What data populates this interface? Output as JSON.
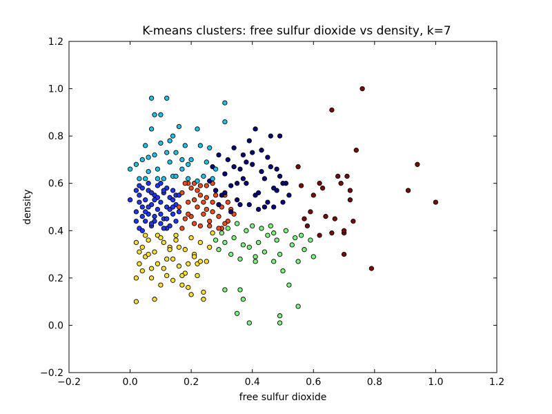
{
  "chart_data": {
    "type": "scatter",
    "title": "K-means clusters: free sulfur dioxide vs density, k=7",
    "xlabel": "free sulfur dioxide",
    "ylabel": "density",
    "xlim": [
      -0.2,
      1.2
    ],
    "ylim": [
      -0.2,
      1.2
    ],
    "xticks": [
      "−0.2",
      "0.0",
      "0.2",
      "0.4",
      "0.6",
      "0.8",
      "1.0",
      "1.2"
    ],
    "yticks": [
      "−0.2",
      "0.0",
      "0.2",
      "0.4",
      "0.6",
      "0.8",
      "1.0",
      "1.2"
    ],
    "grid": false,
    "legend": "none",
    "series": [
      {
        "color": "#2035f0",
        "x": [
          0.0,
          0.02,
          0.03,
          0.03,
          0.04,
          0.04,
          0.05,
          0.05,
          0.06,
          0.06,
          0.07,
          0.07,
          0.08,
          0.08,
          0.09,
          0.09,
          0.1,
          0.1,
          0.11,
          0.11,
          0.12,
          0.12,
          0.13,
          0.13,
          0.14,
          0.14,
          0.15,
          0.15,
          0.16,
          0.02,
          0.04,
          0.06,
          0.08,
          0.1,
          0.12,
          0.14,
          0.03,
          0.05,
          0.07,
          0.09,
          0.11,
          0.13,
          0.15,
          0.02,
          0.06,
          0.1,
          0.14,
          0.04,
          0.08,
          0.12,
          0.16,
          0.03,
          0.07,
          0.11
        ],
        "y": [
          0.53,
          0.48,
          0.55,
          0.41,
          0.5,
          0.58,
          0.44,
          0.53,
          0.47,
          0.57,
          0.42,
          0.51,
          0.55,
          0.46,
          0.49,
          0.59,
          0.43,
          0.52,
          0.56,
          0.45,
          0.5,
          0.58,
          0.42,
          0.54,
          0.47,
          0.57,
          0.44,
          0.51,
          0.48,
          0.57,
          0.4,
          0.6,
          0.44,
          0.6,
          0.41,
          0.53,
          0.52,
          0.48,
          0.56,
          0.54,
          0.41,
          0.49,
          0.55,
          0.44,
          0.5,
          0.47,
          0.5,
          0.46,
          0.53,
          0.45,
          0.55,
          0.59,
          0.43,
          0.57
        ]
      },
      {
        "color": "#ee4c1a",
        "x": [
          0.16,
          0.17,
          0.18,
          0.19,
          0.2,
          0.21,
          0.22,
          0.23,
          0.24,
          0.25,
          0.26,
          0.27,
          0.28,
          0.29,
          0.3,
          0.31,
          0.32,
          0.33,
          0.34,
          0.17,
          0.19,
          0.21,
          0.23,
          0.25,
          0.27,
          0.29,
          0.31,
          0.18,
          0.2,
          0.22,
          0.24,
          0.26,
          0.28,
          0.3,
          0.32,
          0.21,
          0.25,
          0.29,
          0.19,
          0.23,
          0.27
        ],
        "y": [
          0.5,
          0.56,
          0.45,
          0.52,
          0.58,
          0.43,
          0.5,
          0.55,
          0.47,
          0.59,
          0.44,
          0.52,
          0.57,
          0.46,
          0.5,
          0.55,
          0.44,
          0.49,
          0.47,
          0.41,
          0.6,
          0.53,
          0.42,
          0.54,
          0.48,
          0.51,
          0.43,
          0.6,
          0.46,
          0.57,
          0.52,
          0.42,
          0.55,
          0.41,
          0.52,
          0.6,
          0.49,
          0.41,
          0.47,
          0.59,
          0.6
        ]
      },
      {
        "color": "#08087a",
        "x": [
          0.26,
          0.27,
          0.28,
          0.29,
          0.3,
          0.31,
          0.32,
          0.33,
          0.34,
          0.35,
          0.36,
          0.37,
          0.38,
          0.39,
          0.4,
          0.41,
          0.42,
          0.43,
          0.44,
          0.45,
          0.46,
          0.47,
          0.48,
          0.49,
          0.5,
          0.51,
          0.52,
          0.33,
          0.35,
          0.38,
          0.42,
          0.45,
          0.47,
          0.49,
          0.36,
          0.4,
          0.44,
          0.48,
          0.31,
          0.34,
          0.39,
          0.43,
          0.29,
          0.37,
          0.41,
          0.46,
          0.5
        ],
        "y": [
          0.61,
          0.67,
          0.57,
          0.72,
          0.55,
          0.64,
          0.7,
          0.59,
          0.75,
          0.53,
          0.66,
          0.72,
          0.6,
          0.51,
          0.68,
          0.83,
          0.56,
          0.74,
          0.62,
          0.52,
          0.8,
          0.58,
          0.66,
          0.8,
          0.52,
          0.6,
          0.55,
          0.48,
          0.6,
          0.69,
          0.49,
          0.71,
          0.5,
          0.63,
          0.51,
          0.73,
          0.5,
          0.57,
          0.56,
          0.67,
          0.78,
          0.65,
          0.51,
          0.62,
          0.55,
          0.67,
          0.6
        ]
      },
      {
        "color": "#1cc3e6",
        "x": [
          0.0,
          0.02,
          0.03,
          0.04,
          0.05,
          0.06,
          0.07,
          0.07,
          0.08,
          0.08,
          0.09,
          0.1,
          0.11,
          0.12,
          0.13,
          0.13,
          0.14,
          0.15,
          0.16,
          0.17,
          0.18,
          0.19,
          0.2,
          0.22,
          0.23,
          0.24,
          0.25,
          0.26,
          0.27,
          0.28,
          0.31,
          0.31,
          0.22,
          0.17,
          0.05,
          0.09,
          0.12,
          0.15,
          0.06,
          0.1,
          0.14,
          0.19
        ],
        "y": [
          0.66,
          0.68,
          0.62,
          0.7,
          0.76,
          0.65,
          0.83,
          0.96,
          0.89,
          0.72,
          0.66,
          0.77,
          0.62,
          0.96,
          0.78,
          0.69,
          0.63,
          0.73,
          0.84,
          0.66,
          0.76,
          0.62,
          0.7,
          0.83,
          0.76,
          0.63,
          0.69,
          0.75,
          0.62,
          0.66,
          0.94,
          0.86,
          0.61,
          0.7,
          0.62,
          0.62,
          0.73,
          0.63,
          0.71,
          0.89,
          0.8,
          0.68
        ]
      },
      {
        "color": "#fce025",
        "x": [
          0.02,
          0.02,
          0.03,
          0.04,
          0.05,
          0.06,
          0.07,
          0.08,
          0.09,
          0.1,
          0.11,
          0.12,
          0.13,
          0.14,
          0.15,
          0.16,
          0.17,
          0.18,
          0.19,
          0.2,
          0.21,
          0.22,
          0.23,
          0.24,
          0.25,
          0.26,
          0.27,
          0.02,
          0.04,
          0.06,
          0.08,
          0.1,
          0.12,
          0.14,
          0.16,
          0.18,
          0.2,
          0.22,
          0.24,
          0.05,
          0.09,
          0.13,
          0.17,
          0.21,
          0.03,
          0.07,
          0.11,
          0.15,
          0.19,
          0.23
        ],
        "y": [
          0.1,
          0.2,
          0.26,
          0.33,
          0.29,
          0.36,
          0.24,
          0.31,
          0.38,
          0.17,
          0.35,
          0.28,
          0.33,
          0.19,
          0.36,
          0.25,
          0.17,
          0.32,
          0.26,
          0.13,
          0.3,
          0.21,
          0.35,
          0.11,
          0.27,
          0.33,
          0.39,
          0.35,
          0.23,
          0.3,
          0.11,
          0.37,
          0.21,
          0.28,
          0.33,
          0.22,
          0.37,
          0.26,
          0.14,
          0.38,
          0.26,
          0.32,
          0.21,
          0.29,
          0.31,
          0.2,
          0.24,
          0.38,
          0.16,
          0.27
        ]
      },
      {
        "color": "#7ef27e",
        "x": [
          0.28,
          0.29,
          0.3,
          0.31,
          0.32,
          0.33,
          0.34,
          0.35,
          0.36,
          0.37,
          0.38,
          0.39,
          0.4,
          0.41,
          0.42,
          0.43,
          0.44,
          0.45,
          0.46,
          0.47,
          0.48,
          0.49,
          0.5,
          0.51,
          0.52,
          0.53,
          0.54,
          0.55,
          0.56,
          0.57,
          0.59,
          0.6,
          0.31,
          0.36,
          0.37,
          0.39,
          0.49,
          0.49,
          0.55,
          0.35,
          0.41,
          0.47
        ],
        "y": [
          0.36,
          0.32,
          0.39,
          0.35,
          0.41,
          0.3,
          0.37,
          0.43,
          0.28,
          0.34,
          0.4,
          0.33,
          0.42,
          0.27,
          0.35,
          0.41,
          0.31,
          0.38,
          0.42,
          0.27,
          0.36,
          0.3,
          0.23,
          0.4,
          0.17,
          0.34,
          0.37,
          0.27,
          0.38,
          0.32,
          0.36,
          0.29,
          0.15,
          0.15,
          0.11,
          0.01,
          0.04,
          0.01,
          0.08,
          0.05,
          0.29,
          0.39
        ]
      },
      {
        "color": "#7a0b0b",
        "x": [
          0.55,
          0.56,
          0.57,
          0.58,
          0.59,
          0.62,
          0.62,
          0.64,
          0.66,
          0.66,
          0.67,
          0.69,
          0.7,
          0.7,
          0.71,
          0.72,
          0.72,
          0.73,
          0.74,
          0.76,
          0.79,
          0.91,
          0.94,
          1.0,
          0.6,
          0.63,
          0.68,
          0.7
        ],
        "y": [
          0.67,
          0.59,
          0.45,
          0.42,
          0.48,
          0.6,
          0.38,
          0.46,
          0.91,
          0.39,
          0.45,
          0.6,
          0.3,
          0.39,
          0.63,
          0.57,
          0.53,
          0.44,
          0.74,
          1.0,
          0.24,
          0.57,
          0.68,
          0.52,
          0.55,
          0.58,
          0.63,
          0.4
        ]
      }
    ]
  }
}
